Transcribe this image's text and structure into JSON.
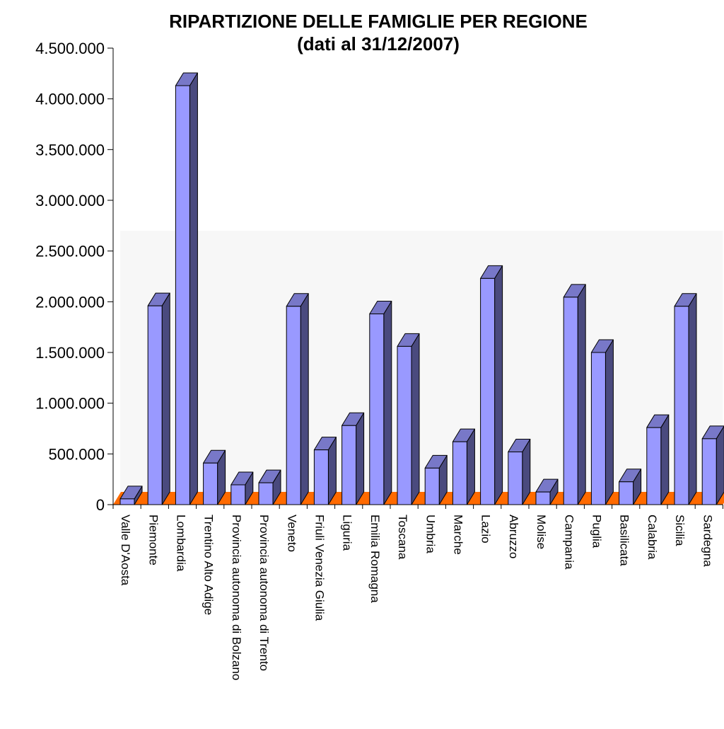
{
  "chart_data": {
    "type": "bar",
    "title": "RIPARTIZIONE DELLE FAMIGLIE PER REGIONE",
    "subtitle": "(dati al 31/12/2007)",
    "xlabel": "",
    "ylabel": "",
    "ylim": [
      0,
      4500000
    ],
    "yticks": [
      0,
      500000,
      1000000,
      1500000,
      2000000,
      2500000,
      3000000,
      3500000,
      4000000,
      4500000
    ],
    "ytick_labels": [
      "0",
      "500.000",
      "1.000.000",
      "1.500.000",
      "2.000.000",
      "2.500.000",
      "3.000.000",
      "3.500.000",
      "4.000.000",
      "4.500.000"
    ],
    "grid": false,
    "legend": "none",
    "categories": [
      "Valle D'Aosta",
      "Piemonte",
      "Lombardia",
      "Trentino Alto Adige",
      "Provincia autonoma di Bolzano",
      "Provincia autonoma di Trento",
      "Veneto",
      "Friuli Venezia Giulia",
      "Liguria",
      "Emilia Romagna",
      "Toscana",
      "Umbria",
      "Marche",
      "Lazio",
      "Abruzzo",
      "Molise",
      "Campania",
      "Puglia",
      "Basilicata",
      "Calabria",
      "Sicilia",
      "Sardegna"
    ],
    "values": [
      57000,
      1960000,
      4130000,
      410000,
      195000,
      215000,
      1955000,
      540000,
      780000,
      1880000,
      1560000,
      360000,
      620000,
      2230000,
      520000,
      125000,
      2045000,
      1500000,
      225000,
      760000,
      1955000,
      650000
    ],
    "colors": {
      "bar_front": "#9999ff",
      "bar_side": "#4a4a7e",
      "bar_top": "#7878c8",
      "floor": "#ff6a00",
      "back_wall": "#f7f7f7"
    }
  }
}
